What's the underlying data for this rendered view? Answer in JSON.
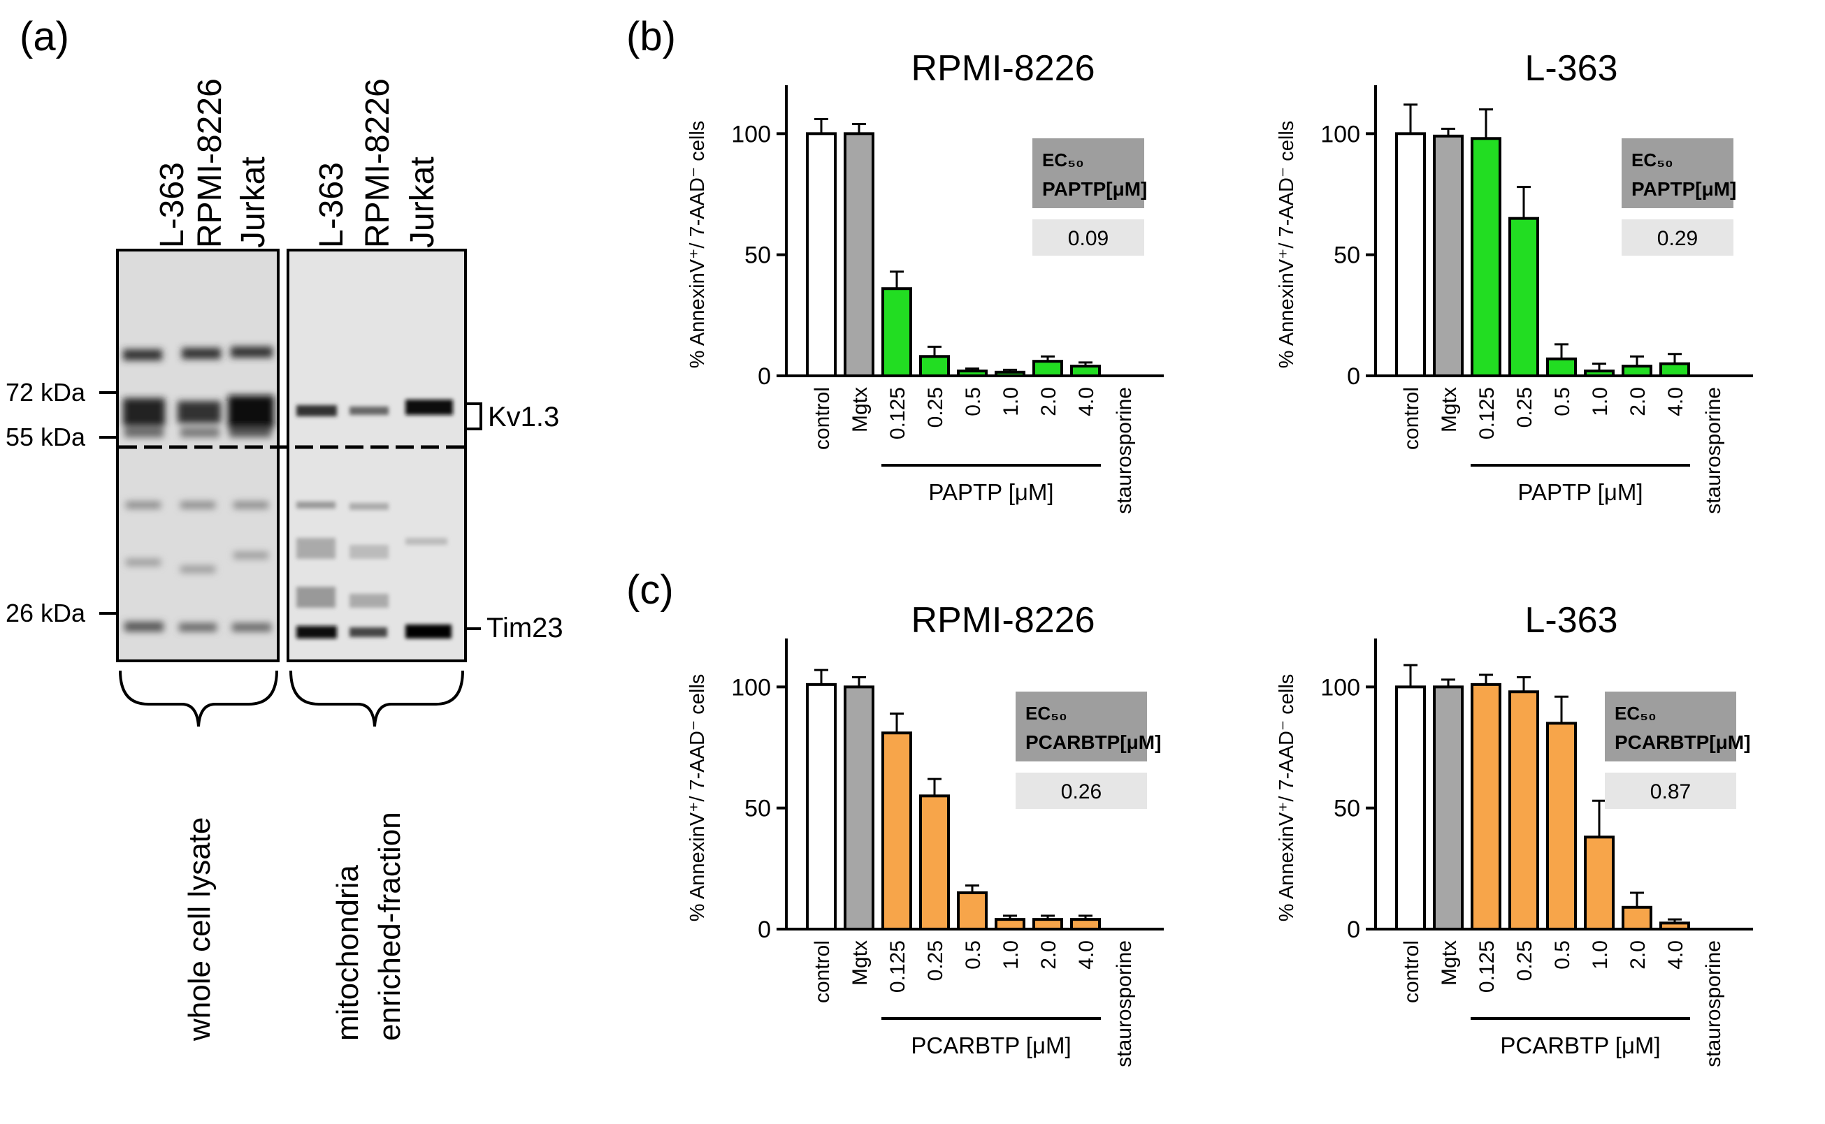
{
  "panels": {
    "a": "(a)",
    "b": "(b)",
    "c": "(c)"
  },
  "blot": {
    "lanes_left": [
      "L-363",
      "RPMI-8226",
      "Jurkat"
    ],
    "lanes_right": [
      "L-363",
      "RPMI-8226",
      "Jurkat"
    ],
    "markers": [
      "72 kDa",
      "55 kDa",
      "26 kDa"
    ],
    "bands": [
      "Kv1.3",
      "Tim23"
    ],
    "group_left": "whole cell lysate",
    "group_right_line1": "mitochondria",
    "group_right_line2": "enriched-fraction"
  },
  "colors": {
    "green": "#22dd22",
    "orange": "#f7a54a",
    "gray": "#a6a6a6",
    "white": "#ffffff",
    "ec_header": "#9e9e9e",
    "ec_value": "#e6e6e6"
  },
  "chart_data": [
    {
      "id": "b-rpmi",
      "type": "bar",
      "title": "RPMI-8226",
      "ylabel": "% AnnexinV⁺/ 7-AAD⁻ cells",
      "ylim": [
        0,
        120
      ],
      "yticks": [
        "0",
        "50",
        "100"
      ],
      "categories": [
        "control",
        "Mgtx",
        "0.125",
        "0.25",
        "0.5",
        "1.0",
        "2.0",
        "4.0",
        "staurosporine"
      ],
      "values": [
        100,
        100,
        36,
        8,
        2,
        1.5,
        6,
        4,
        0
      ],
      "errors": [
        6,
        4,
        7,
        4,
        1,
        1,
        2,
        1.5,
        0
      ],
      "bar_colors": [
        "white",
        "gray",
        "green",
        "green",
        "green",
        "green",
        "green",
        "green",
        "white"
      ],
      "group_label": "PAPTP [μM]",
      "ec_header_line1": "EC₅₀",
      "ec_header_line2": "PAPTP[μM]",
      "ec_value": "0.09"
    },
    {
      "id": "b-l363",
      "type": "bar",
      "title": "L-363",
      "ylabel": "% AnnexinV⁺/ 7-AAD⁻ cells",
      "ylim": [
        0,
        120
      ],
      "yticks": [
        "0",
        "50",
        "100"
      ],
      "categories": [
        "control",
        "Mgtx",
        "0.125",
        "0.25",
        "0.5",
        "1.0",
        "2.0",
        "4.0",
        "staurosporine"
      ],
      "values": [
        100,
        99,
        98,
        65,
        7,
        2,
        4,
        5,
        0
      ],
      "errors": [
        12,
        3,
        12,
        13,
        6,
        3,
        4,
        4,
        0
      ],
      "bar_colors": [
        "white",
        "gray",
        "green",
        "green",
        "green",
        "green",
        "green",
        "green",
        "white"
      ],
      "group_label": "PAPTP [μM]",
      "ec_header_line1": "EC₅₀",
      "ec_header_line2": "PAPTP[μM]",
      "ec_value": "0.29"
    },
    {
      "id": "c-rpmi",
      "type": "bar",
      "title": "RPMI-8226",
      "ylabel": "% AnnexinV⁺/ 7-AAD⁻ cells",
      "ylim": [
        0,
        120
      ],
      "yticks": [
        "0",
        "50",
        "100"
      ],
      "categories": [
        "control",
        "Mgtx",
        "0.125",
        "0.25",
        "0.5",
        "1.0",
        "2.0",
        "4.0",
        "staurosporine"
      ],
      "values": [
        101,
        100,
        81,
        55,
        15,
        4,
        4,
        4,
        0
      ],
      "errors": [
        6,
        4,
        8,
        7,
        3,
        1.5,
        1.5,
        1.5,
        0
      ],
      "bar_colors": [
        "white",
        "gray",
        "orange",
        "orange",
        "orange",
        "orange",
        "orange",
        "orange",
        "white"
      ],
      "group_label": "PCARBTP [μM]",
      "ec_header_line1": "EC₅₀",
      "ec_header_line2": "PCARBTP[μM]",
      "ec_value": "0.26"
    },
    {
      "id": "c-l363",
      "type": "bar",
      "title": "L-363",
      "ylabel": "% AnnexinV⁺/ 7-AAD⁻ cells",
      "ylim": [
        0,
        120
      ],
      "yticks": [
        "0",
        "50",
        "100"
      ],
      "categories": [
        "control",
        "Mgtx",
        "0.125",
        "0.25",
        "0.5",
        "1.0",
        "2.0",
        "4.0",
        "staurosporine"
      ],
      "values": [
        100,
        100,
        101,
        98,
        85,
        38,
        9,
        2.5,
        0
      ],
      "errors": [
        9,
        3,
        4,
        6,
        11,
        15,
        6,
        1.5,
        0
      ],
      "bar_colors": [
        "white",
        "gray",
        "orange",
        "orange",
        "orange",
        "orange",
        "orange",
        "orange",
        "white"
      ],
      "group_label": "PCARBTP [μM]",
      "ec_header_line1": "EC₅₀",
      "ec_header_line2": "PCARBTP[μM]",
      "ec_value": "0.87"
    }
  ]
}
